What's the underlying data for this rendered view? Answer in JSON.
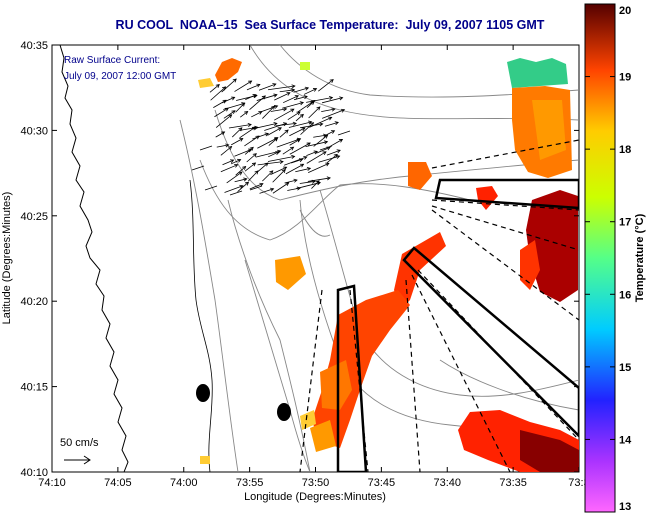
{
  "title": "RU COOL  NOAA–15  Sea Surface Temperature:  July 09, 2007 1105 GMT",
  "current_legend": {
    "line1": "Raw Surface Current:",
    "line2": "July 09, 2007 12:00 GMT",
    "scale_label": "50 cm/s"
  },
  "axes": {
    "xlabel": "Longitude (Degrees:Minutes)",
    "ylabel": "Latitude (Degrees:Minutes)",
    "x_ticks": [
      "74:10",
      "74:05",
      "74:00",
      "73:55",
      "73:50",
      "73:45",
      "73:40",
      "73:35",
      "73:3"
    ],
    "y_ticks": [
      "40:35",
      "40:30",
      "40:25",
      "40:20",
      "40:15",
      "40:10"
    ]
  },
  "colorbar": {
    "label": "Temperature (°C)",
    "ticks": [
      "20",
      "19",
      "18",
      "17",
      "16",
      "15",
      "14",
      "13"
    ],
    "min": 13,
    "max": 20
  },
  "colors": {
    "title": "#00008b",
    "land": "#ffffff",
    "contour": "#888888"
  }
}
